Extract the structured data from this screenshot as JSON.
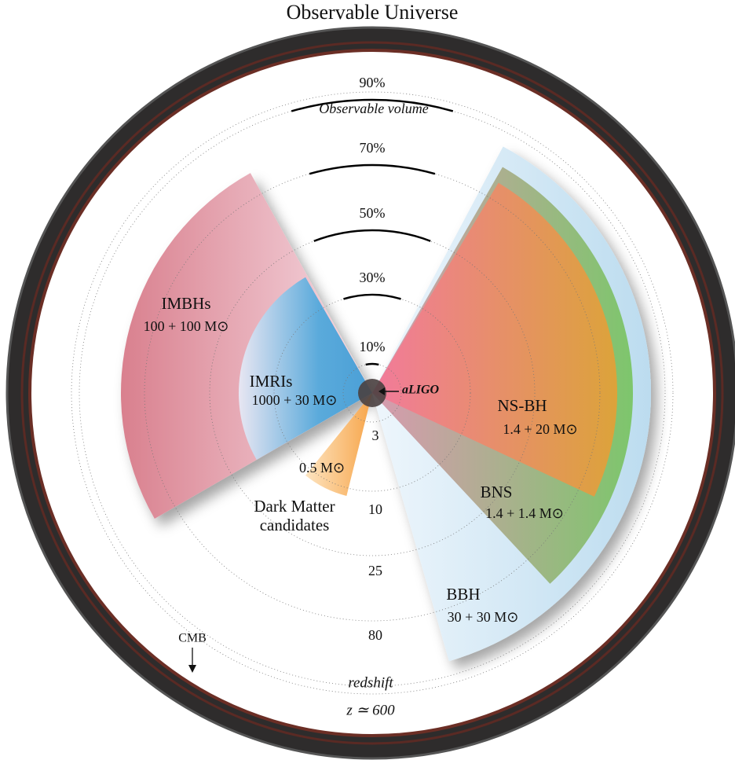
{
  "title": "Observable Universe",
  "volume_rings": [
    "10%",
    "30%",
    "50%",
    "70%",
    "90%"
  ],
  "volume_caption": "Observable volume",
  "detector": "aLIGO",
  "redshift_labels": [
    "3",
    "10",
    "25",
    "80"
  ],
  "redshift_caption": "redshift",
  "cmb_redshift": "z ≃ 600",
  "cmb": "CMB",
  "sources": [
    {
      "name": "IMBHs",
      "mass": "100 + 100 M⊙"
    },
    {
      "name": "IMRIs",
      "mass": "1000 + 30 M⊙"
    },
    {
      "name": "Dark Matter candidates",
      "mass": "0.5 M⊙"
    },
    {
      "name": "NS-BH",
      "mass": "1.4 + 20 M⊙"
    },
    {
      "name": "BNS",
      "mass": "1.4 + 1.4 M⊙"
    },
    {
      "name": "BBH",
      "mass": "30 + 30 M⊙"
    }
  ]
}
